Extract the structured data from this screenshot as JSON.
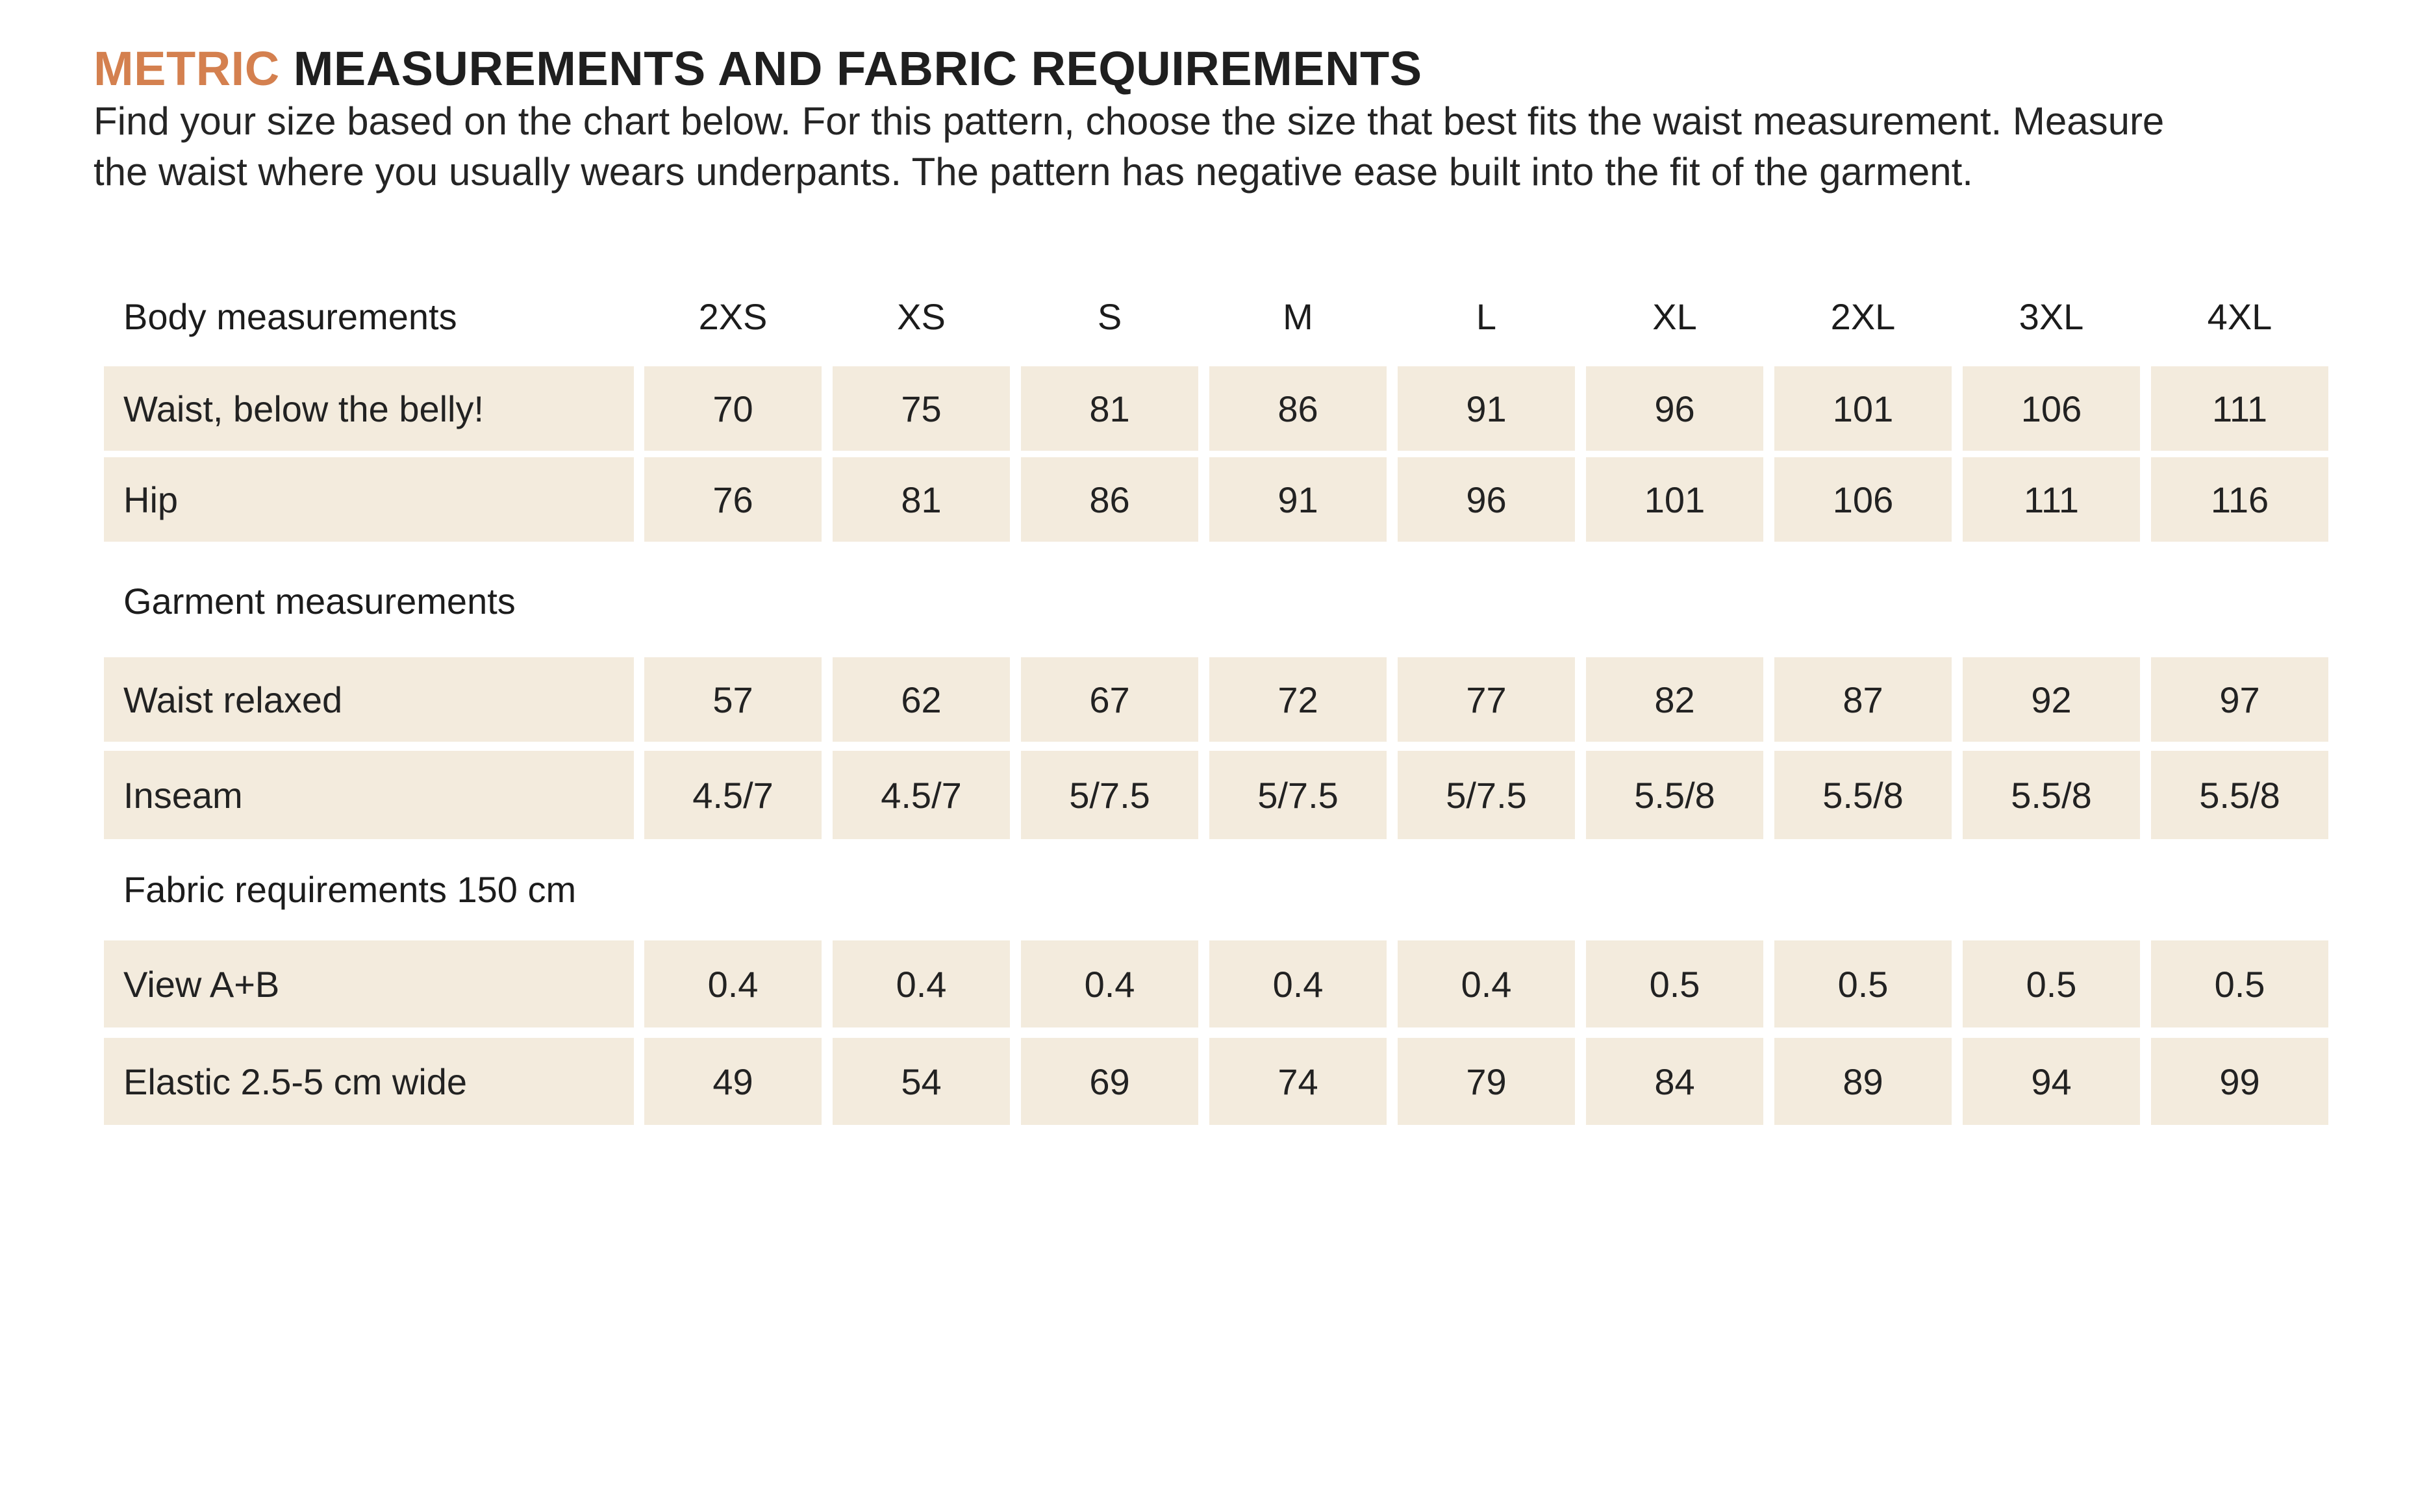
{
  "title": {
    "accent": "METRIC",
    "rest": "MEASUREMENTS AND FABRIC REQUIREMENTS"
  },
  "intro": {
    "line1": "Find your size based on the chart below. For this pattern, choose the size that best fits the waist measurement. Measure",
    "line2": "the waist where you usually wears underpants. The pattern has negative ease built into the fit of the garment."
  },
  "table": {
    "body_header": {
      "label": "Body measurements",
      "sizes": [
        "2XS",
        "XS",
        "S",
        "M",
        "L",
        "XL",
        "2XL",
        "3XL",
        "4XL"
      ]
    },
    "waist": {
      "label": "Waist, below the belly!",
      "values": [
        "70",
        "75",
        "81",
        "86",
        "91",
        "96",
        "101",
        "106",
        "111"
      ]
    },
    "hip": {
      "label": "Hip",
      "values": [
        "76",
        "81",
        "86",
        "91",
        "96",
        "101",
        "106",
        "111",
        "116"
      ]
    },
    "garment_header": {
      "label": "Garment measurements"
    },
    "waist_relaxed": {
      "label": "Waist relaxed",
      "values": [
        "57",
        "62",
        "67",
        "72",
        "77",
        "82",
        "87",
        "92",
        "97"
      ]
    },
    "inseam": {
      "label": "Inseam",
      "values": [
        "4.5/7",
        "4.5/7",
        "5/7.5",
        "5/7.5",
        "5/7.5",
        "5.5/8",
        "5.5/8",
        "5.5/8",
        "5.5/8"
      ]
    },
    "fabric_header": {
      "label": "Fabric requirements 150 cm"
    },
    "view_ab": {
      "label": "View A+B",
      "values": [
        "0.4",
        "0.4",
        "0.4",
        "0.4",
        "0.4",
        "0.5",
        "0.5",
        "0.5",
        "0.5"
      ]
    },
    "elastic": {
      "label": "Elastic 2.5-5 cm wide",
      "values": [
        "49",
        "54",
        "69",
        "74",
        "79",
        "84",
        "89",
        "94",
        "99"
      ]
    }
  },
  "colors": {
    "accent": "#d4804f",
    "cell_fill": "#f3ebdd",
    "text": "#1e1e1e"
  }
}
